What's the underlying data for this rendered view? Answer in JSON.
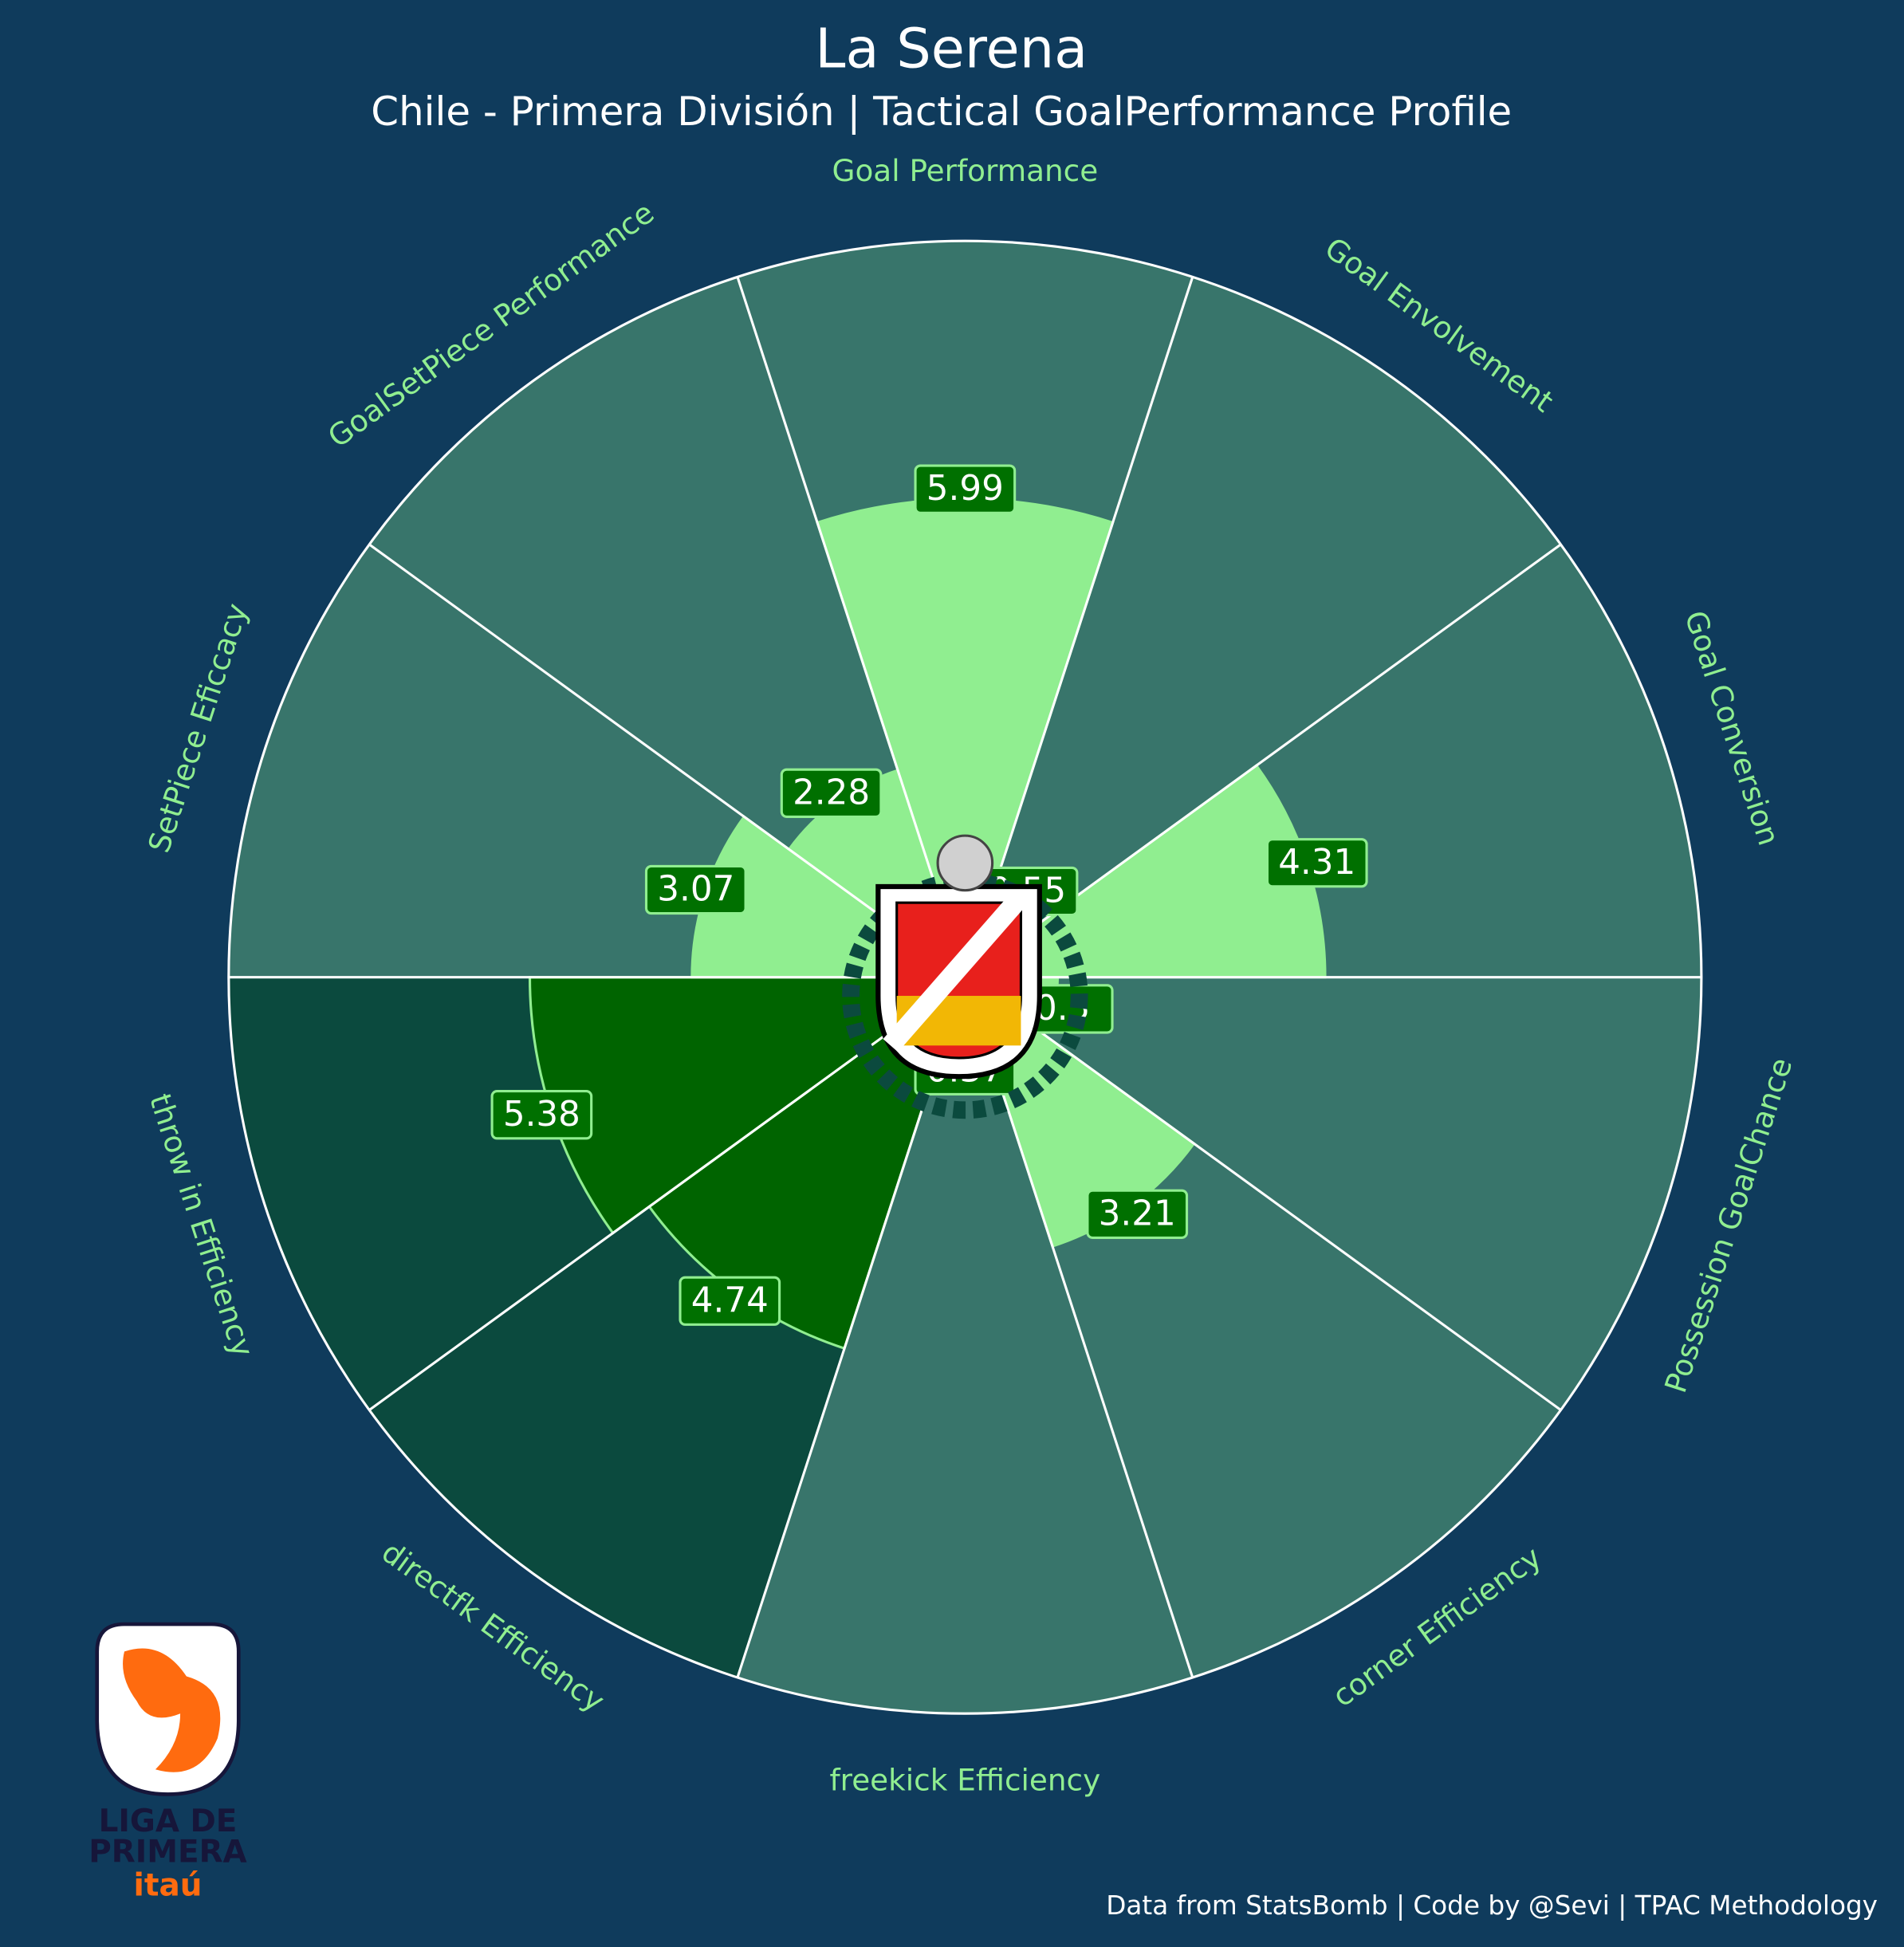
{
  "chart_data": {
    "type": "pizza",
    "title": "La Serena",
    "subtitle": "Chile - Primera División | Tactical GoalPerformance Profile",
    "footer": "Data from StatsBomb | Code by @Sevi | TPAC Methodology",
    "league_logo": [
      "LIGA DE",
      "PRIMERA",
      "itaú"
    ],
    "categories": [
      "Goal Performance",
      "Goal Envolvement",
      "Goal Conversion",
      "Possession GoalChance",
      "corner Efficiency",
      "freekick Efficiency",
      "directfk Efficiency",
      "throw in Efficiency",
      "SetPiece Eficcacy",
      "GoalSetPiece Performance"
    ],
    "values": [
      5.99,
      0.55,
      4.31,
      0.5,
      3.21,
      0.37,
      4.74,
      5.38,
      3.07,
      2.28
    ],
    "colors": [
      "#90ee90",
      "#90ee90",
      "#90ee90",
      "#90ee90",
      "#90ee90",
      "#90ee90",
      "#006400",
      "#006400",
      "#90ee90",
      "#90ee90"
    ],
    "slice_background_colors": [
      "#38756b",
      "#38756b",
      "#38756b",
      "#38756b",
      "#38756b",
      "#38756b",
      "#0b4a3e",
      "#0b4a3e",
      "#38756b",
      "#38756b"
    ],
    "ylim": [
      -0.82,
      9.67
    ]
  }
}
